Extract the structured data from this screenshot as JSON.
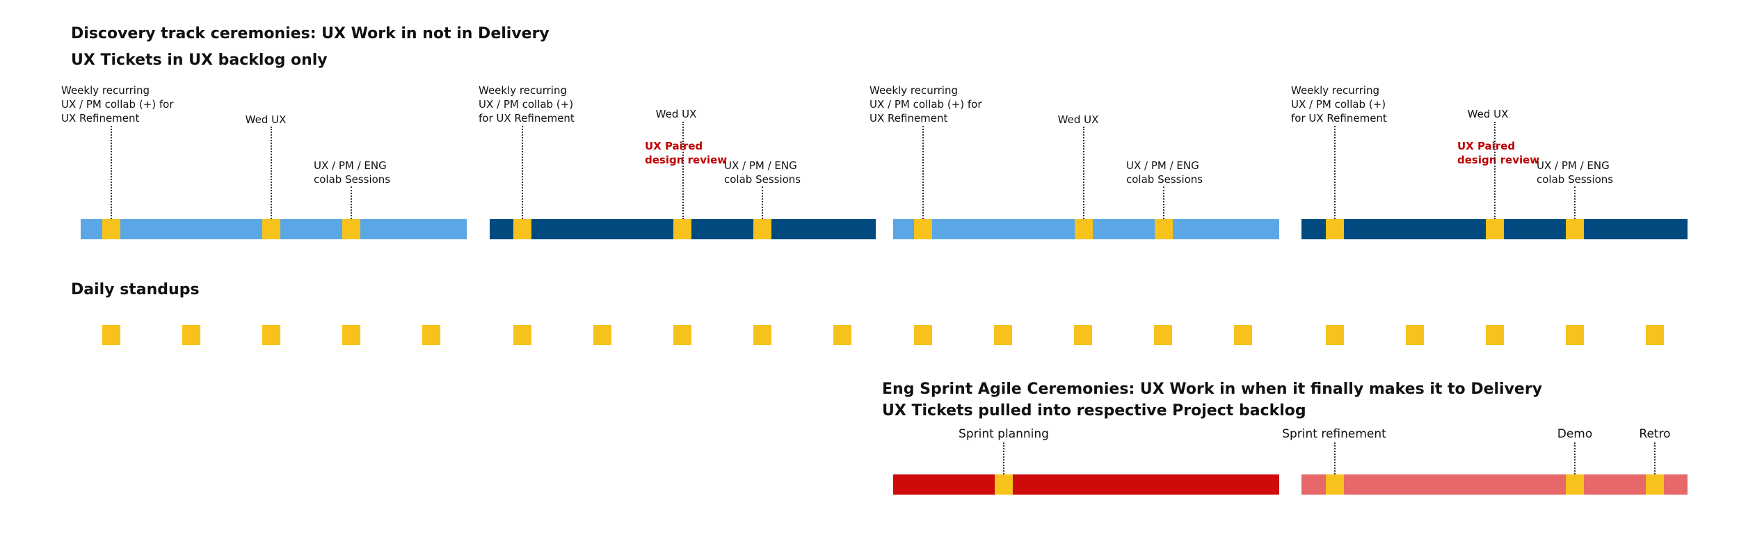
{
  "discovery": {
    "title": "Discovery track ceremonies: UX Work in not in Delivery",
    "subtitle": "UX Tickets in UX backlog only",
    "weekly_a": "Weekly recurring\nUX / PM collab (+) for\nUX Refinement",
    "weekly_b": "Weekly recurring\nUX / PM collab (+)\nfor UX Refinement",
    "weekly_c": "Weekly recurring\nUX / PM collab (+) for\nUX Refinement",
    "weekly_d": "Weekly recurring\nUX / PM collab (+)\nfor UX Refinement",
    "wed_ux": "Wed UX",
    "paired_review": "UX Paired\ndesign review",
    "colab_sessions": "UX / PM / ENG\ncolab Sessions"
  },
  "standups": {
    "title": "Daily standups",
    "count": 20
  },
  "sprint": {
    "title": "Eng Sprint Agile Ceremonies: UX Work in when it finally makes it to Delivery",
    "subtitle": "UX Tickets pulled into respective Project backlog",
    "planning": "Sprint planning",
    "refinement": "Sprint refinement",
    "demo": "Demo",
    "retro": "Retro"
  },
  "colors": {
    "light_blue": "#5ba6e5",
    "dark_blue": "#004a80",
    "ceremony": "#f7c21c",
    "sprint_red": "#cf0a0a",
    "sprint_pink": "#e66868",
    "highlight_text": "#c00000"
  }
}
